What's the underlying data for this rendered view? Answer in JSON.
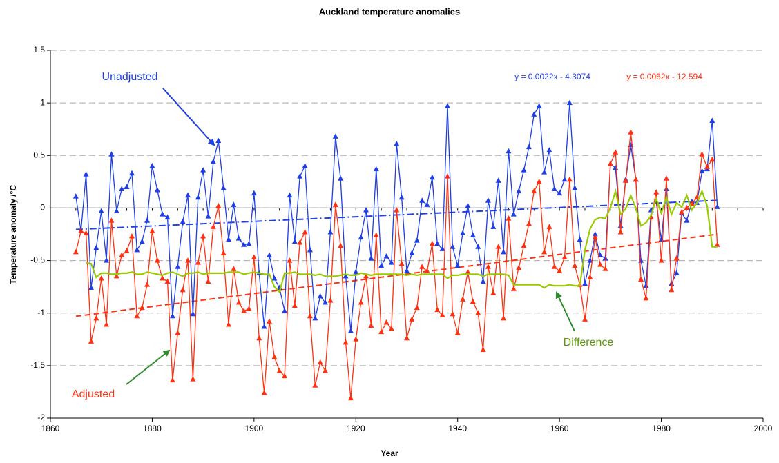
{
  "chart_data": {
    "type": "line",
    "title": "Auckland temperature anomalies",
    "x_label": "Year",
    "y_label": "Temperature anomaly /°C",
    "xlim": [
      1860,
      2000
    ],
    "xticks": [
      1860,
      1880,
      1900,
      1920,
      1940,
      1960,
      1980,
      2000
    ],
    "ylim": [
      -2,
      1.5
    ],
    "yticks": [
      -2,
      -1.5,
      -1,
      -0.5,
      0,
      0.5,
      1,
      1.5
    ],
    "grid": true,
    "x": [
      1865,
      1866,
      1867,
      1868,
      1869,
      1870,
      1871,
      1872,
      1873,
      1874,
      1875,
      1876,
      1877,
      1878,
      1879,
      1880,
      1881,
      1882,
      1883,
      1884,
      1885,
      1886,
      1887,
      1888,
      1889,
      1890,
      1891,
      1892,
      1893,
      1894,
      1895,
      1896,
      1897,
      1898,
      1899,
      1900,
      1901,
      1902,
      1903,
      1904,
      1905,
      1906,
      1907,
      1908,
      1909,
      1910,
      1911,
      1912,
      1913,
      1914,
      1915,
      1916,
      1917,
      1918,
      1919,
      1920,
      1921,
      1922,
      1923,
      1924,
      1925,
      1926,
      1927,
      1928,
      1929,
      1930,
      1931,
      1932,
      1933,
      1934,
      1935,
      1936,
      1937,
      1938,
      1939,
      1940,
      1941,
      1942,
      1943,
      1944,
      1945,
      1946,
      1947,
      1948,
      1949,
      1950,
      1951,
      1952,
      1953,
      1954,
      1955,
      1956,
      1957,
      1958,
      1959,
      1960,
      1961,
      1962,
      1963,
      1964,
      1965,
      1966,
      1967,
      1968,
      1969,
      1970,
      1971,
      1972,
      1973,
      1974,
      1975,
      1976,
      1977,
      1978,
      1979,
      1980,
      1981,
      1982,
      1983,
      1984,
      1985,
      1986,
      1987,
      1988,
      1989,
      1990,
      1991
    ],
    "series": [
      {
        "name": "Unadjusted",
        "color": "#1f3fe6",
        "marker": "triangle",
        "values": [
          0.11,
          -0.22,
          0.32,
          -0.76,
          -0.38,
          -0.03,
          -0.5,
          0.51,
          -0.03,
          0.18,
          0.2,
          0.33,
          -0.4,
          -0.32,
          -0.12,
          0.4,
          0.17,
          -0.06,
          -0.09,
          -1.03,
          -0.56,
          -0.13,
          0.12,
          -1.01,
          0.1,
          0.36,
          -0.08,
          0.44,
          0.64,
          0.19,
          -0.3,
          0.03,
          -0.29,
          -0.35,
          -0.34,
          0.14,
          -0.62,
          -1.13,
          -0.45,
          -0.67,
          -0.76,
          -0.98,
          0.12,
          -0.32,
          0.3,
          0.4,
          -0.4,
          -1.05,
          -0.84,
          -0.9,
          -0.23,
          0.68,
          0.28,
          -0.65,
          -1.17,
          -0.61,
          -0.28,
          -0.02,
          -0.48,
          0.37,
          -0.55,
          -0.46,
          -0.52,
          0.61,
          0.1,
          -0.6,
          -0.43,
          -0.31,
          0.07,
          0.03,
          0.29,
          -0.34,
          -0.39,
          0.97,
          -0.37,
          -0.55,
          -0.24,
          0.02,
          -0.26,
          -0.37,
          -0.7,
          0.07,
          -0.18,
          0.26,
          -0.42,
          0.54,
          -0.06,
          0.16,
          0.36,
          0.58,
          0.89,
          0.97,
          0.34,
          0.55,
          0.18,
          0.14,
          0.27,
          1.0,
          0.19,
          -0.3,
          -0.72,
          -0.5,
          -0.25,
          -0.45,
          -0.48,
          0.42,
          0.38,
          -0.17,
          0.27,
          0.6,
          0.27,
          -0.5,
          -0.74,
          -0.02,
          0.06,
          -0.3,
          0.18,
          -0.72,
          -0.62,
          -0.05,
          -0.12,
          0.06,
          0.05,
          0.35,
          0.37,
          0.83,
          0.01
        ]
      },
      {
        "name": "Adjusted",
        "color": "#ff3010",
        "marker": "triangle",
        "values": [
          -0.42,
          -0.22,
          -0.24,
          -1.27,
          -1.05,
          -0.67,
          -1.11,
          -0.12,
          -0.65,
          -0.45,
          -0.41,
          -0.27,
          -1.03,
          -0.95,
          -0.73,
          -0.22,
          -0.5,
          -0.67,
          -0.7,
          -1.64,
          -1.19,
          -0.78,
          -0.5,
          -1.63,
          -0.52,
          -0.27,
          -0.7,
          -0.18,
          0.02,
          -0.43,
          -1.11,
          -0.58,
          -0.9,
          -0.98,
          -0.96,
          -0.47,
          -1.24,
          -1.76,
          -1.08,
          -1.42,
          -1.55,
          -1.6,
          -0.5,
          -0.93,
          -0.33,
          -0.23,
          -1.03,
          -1.69,
          -1.47,
          -1.55,
          -0.88,
          0.03,
          -0.36,
          -1.28,
          -1.81,
          -1.25,
          -0.9,
          -0.65,
          -1.12,
          -0.26,
          -1.18,
          -1.09,
          -1.15,
          -0.02,
          -0.53,
          -1.24,
          -1.06,
          -0.95,
          -0.56,
          -0.6,
          -0.34,
          -0.97,
          -1.02,
          0.3,
          -1.01,
          -1.19,
          -0.87,
          -0.61,
          -0.89,
          -1.0,
          -1.35,
          -0.56,
          -0.81,
          -0.37,
          -1.05,
          -0.1,
          -0.77,
          -0.57,
          -0.36,
          -0.15,
          0.16,
          0.25,
          -0.42,
          -0.18,
          -0.56,
          -0.6,
          -0.47,
          0.27,
          -0.55,
          -0.73,
          -1.06,
          -0.66,
          -0.28,
          -0.54,
          -0.58,
          0.42,
          0.53,
          -0.23,
          0.26,
          0.72,
          0.27,
          -0.68,
          -0.86,
          -0.09,
          0.15,
          -0.5,
          0.28,
          -0.78,
          -0.48,
          -0.04,
          0.0,
          0.04,
          0.1,
          0.51,
          0.39,
          0.46,
          -0.35
        ]
      },
      {
        "name": "Difference",
        "color": "#99cc00",
        "marker": "none",
        "values": [
          null,
          null,
          -0.52,
          -0.53,
          -0.66,
          -0.62,
          -0.62,
          -0.63,
          -0.63,
          -0.62,
          -0.62,
          -0.61,
          -0.63,
          -0.63,
          -0.61,
          -0.62,
          -0.63,
          -0.64,
          -0.62,
          -0.61,
          -0.63,
          -0.65,
          -0.62,
          -0.62,
          -0.61,
          -0.63,
          -0.62,
          -0.62,
          -0.62,
          -0.62,
          -0.61,
          -0.61,
          -0.61,
          -0.63,
          -0.62,
          -0.61,
          -0.62,
          -0.63,
          -0.63,
          -0.75,
          -0.8,
          -0.62,
          -0.62,
          -0.61,
          -0.63,
          -0.63,
          -0.63,
          -0.64,
          -0.63,
          -0.65,
          -0.65,
          -0.65,
          -0.64,
          -0.63,
          -0.64,
          -0.64,
          -0.62,
          -0.63,
          -0.64,
          -0.63,
          -0.63,
          -0.63,
          -0.63,
          -0.63,
          -0.63,
          -0.64,
          -0.63,
          -0.64,
          -0.63,
          -0.63,
          -0.63,
          -0.63,
          -0.63,
          -0.67,
          -0.64,
          -0.64,
          -0.63,
          -0.63,
          -0.63,
          -0.63,
          -0.65,
          -0.63,
          -0.63,
          -0.63,
          -0.63,
          -0.64,
          -0.73,
          -0.73,
          -0.73,
          -0.73,
          -0.73,
          -0.73,
          -0.76,
          -0.73,
          -0.74,
          -0.74,
          -0.74,
          -0.73,
          -0.74,
          -0.74,
          -0.4,
          -0.2,
          -0.11,
          -0.09,
          -0.1,
          0.0,
          0.16,
          -0.06,
          -0.01,
          0.12,
          0.0,
          -0.17,
          -0.14,
          -0.07,
          0.09,
          -0.05,
          0.1,
          -0.06,
          0.05,
          0.01,
          0.12,
          -0.02,
          0.05,
          0.16,
          0.02,
          -0.37,
          -0.37
        ]
      }
    ],
    "trendlines": [
      {
        "label": "y = 0.0022x - 4.3074",
        "color": "#1f3fe6",
        "style": "dash-dot",
        "x": [
          1865,
          1991
        ],
        "values": [
          -0.2044,
          0.0728
        ]
      },
      {
        "label": "y = 0.0062x - 12.594",
        "color": "#ff3010",
        "style": "dash",
        "x": [
          1865,
          1991
        ],
        "values": [
          -1.031,
          -0.2498
        ]
      }
    ]
  }
}
